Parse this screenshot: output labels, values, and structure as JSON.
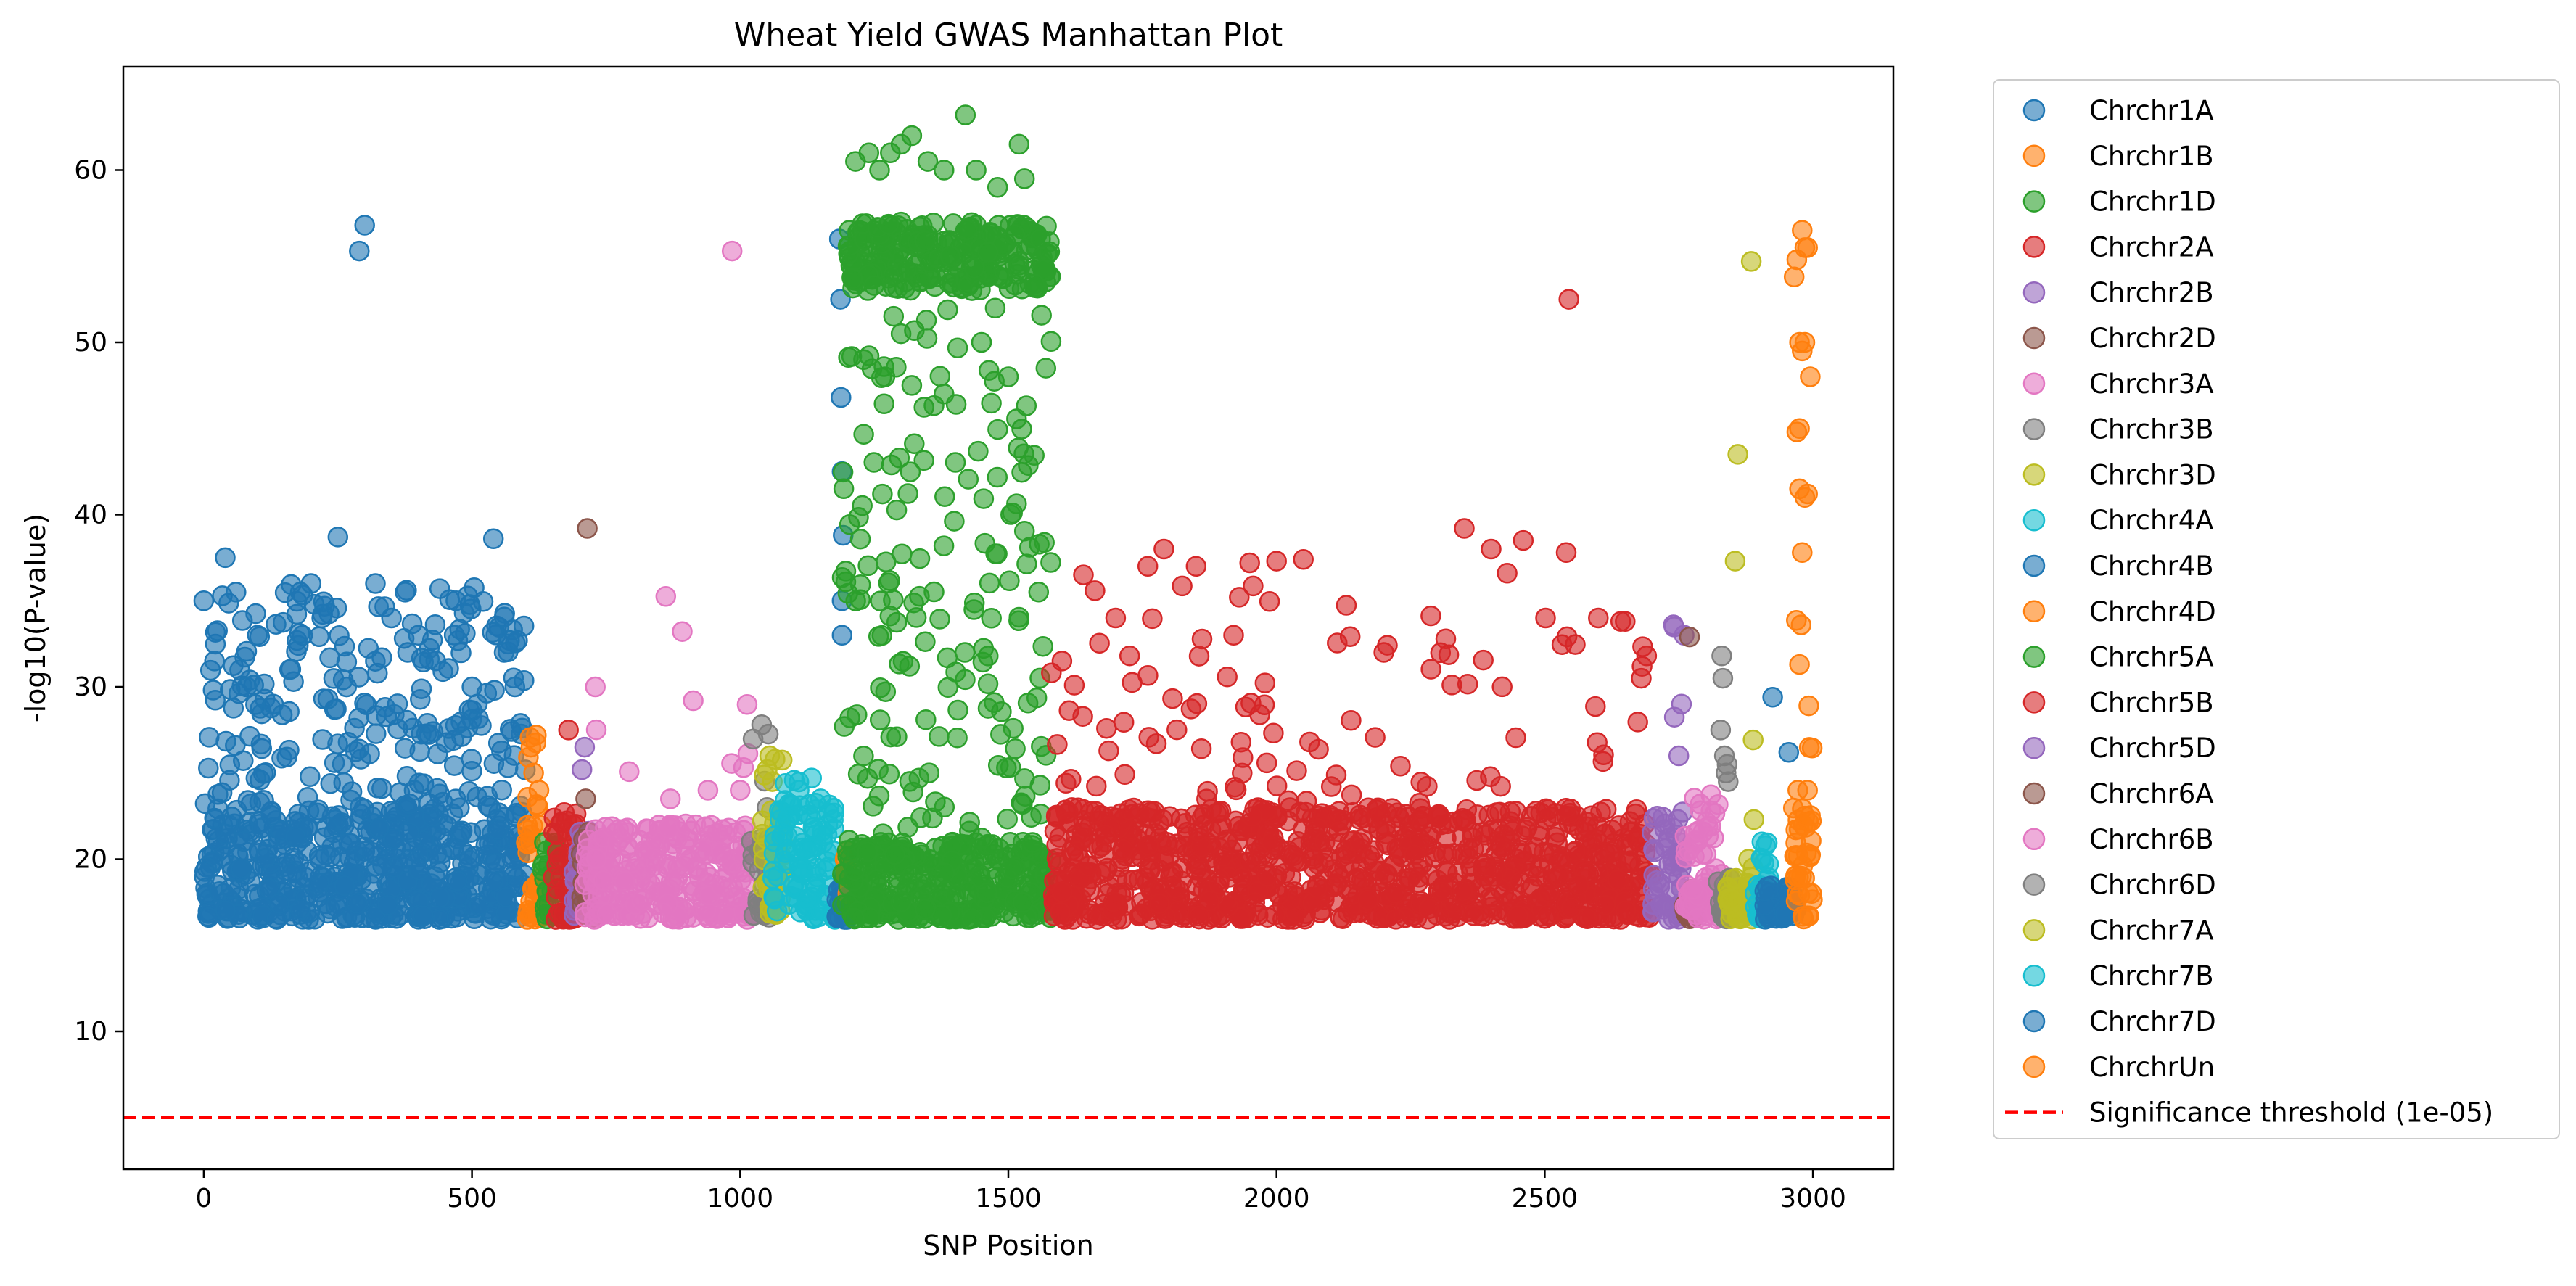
{
  "chart_data": {
    "type": "scatter",
    "title": "Wheat Yield GWAS Manhattan Plot",
    "xlabel": "SNP Position",
    "ylabel": "-log10(P-value)",
    "xlim": [
      -150,
      3150
    ],
    "ylim": [
      2,
      66
    ],
    "x_ticks": [
      0,
      500,
      1000,
      1500,
      2000,
      2500,
      3000
    ],
    "y_ticks": [
      10,
      20,
      30,
      40,
      50,
      60
    ],
    "grid": false,
    "legend_position": "outside-right",
    "threshold": {
      "label": "Significance threshold (1e-05)",
      "value": 5,
      "color": "#ff0000",
      "style": "dashed"
    },
    "series": [
      {
        "name": "Chrchr1A",
        "color": "#1f77b4",
        "x_range": [
          0,
          600
        ],
        "baseline": [
          16.5,
          23
        ],
        "top_hits": [
          [
            0,
            35
          ],
          [
            20,
            31.5
          ],
          [
            40,
            37.5
          ],
          [
            60,
            35.5
          ],
          [
            80,
            30
          ],
          [
            100,
            33
          ],
          [
            130,
            29
          ],
          [
            160,
            31
          ],
          [
            180,
            35.5
          ],
          [
            200,
            36
          ],
          [
            220,
            34
          ],
          [
            250,
            38.7
          ],
          [
            290,
            55.3
          ],
          [
            300,
            56.8
          ],
          [
            320,
            36
          ],
          [
            350,
            34
          ],
          [
            380,
            32
          ],
          [
            400,
            33
          ],
          [
            440,
            35.7
          ],
          [
            470,
            35
          ],
          [
            500,
            30
          ],
          [
            510,
            29
          ],
          [
            540,
            38.6
          ],
          [
            560,
            32
          ],
          [
            580,
            30
          ]
        ],
        "n_mid": 220
      },
      {
        "name": "Chrchr1B",
        "color": "#ff7f0e",
        "x_range": [
          600,
          630
        ],
        "baseline": [
          16.5,
          23
        ],
        "top_hits": [
          [
            610,
            26.5
          ],
          [
            620,
            27.2
          ],
          [
            615,
            25
          ],
          [
            625,
            24
          ]
        ],
        "n_mid": 6
      },
      {
        "name": "Chrchr1D",
        "color": "#2ca02c",
        "x_range": [
          630,
          660
        ],
        "baseline": [
          16.5,
          21
        ],
        "top_hits": [
          [
            640,
            20.5
          ]
        ],
        "n_mid": 0
      },
      {
        "name": "Chrchr2A",
        "color": "#d62728",
        "x_range": [
          650,
          710
        ],
        "baseline": [
          16.5,
          22.5
        ],
        "top_hits": [
          [
            680,
            27.5
          ]
        ],
        "n_mid": 2
      },
      {
        "name": "Chrchr2B",
        "color": "#9467bd",
        "x_range": [
          690,
          720
        ],
        "baseline": [
          16.5,
          22
        ],
        "top_hits": [
          [
            705,
            25.2
          ],
          [
            710,
            26.5
          ]
        ],
        "n_mid": 0
      },
      {
        "name": "Chrchr2D",
        "color": "#8c564b",
        "x_range": [
          700,
          730
        ],
        "baseline": [
          16.5,
          22
        ],
        "top_hits": [
          [
            715,
            39.2
          ],
          [
            712,
            23.5
          ]
        ],
        "n_mid": 0
      },
      {
        "name": "Chrchr3A",
        "color": "#e377c2",
        "x_range": [
          710,
          1020
        ],
        "baseline": [
          16.5,
          22
        ],
        "top_hits": [
          [
            730,
            30
          ],
          [
            985,
            55.3
          ],
          [
            870,
            23.5
          ],
          [
            940,
            24
          ],
          [
            1000,
            24
          ]
        ],
        "n_mid": 10
      },
      {
        "name": "Chrchr3B",
        "color": "#7f7f7f",
        "x_range": [
          1020,
          1060
        ],
        "baseline": [
          16.5,
          22
        ],
        "top_hits": [
          [
            1040,
            27.8
          ],
          [
            1050,
            23
          ]
        ],
        "n_mid": 3
      },
      {
        "name": "Chrchr3D",
        "color": "#bcbd22",
        "x_range": [
          1040,
          1080
        ],
        "baseline": [
          16.5,
          23
        ],
        "top_hits": [
          [
            1055,
            26
          ],
          [
            1065,
            25.8
          ],
          [
            1060,
            24.5
          ]
        ],
        "n_mid": 3
      },
      {
        "name": "Chrchr4A",
        "color": "#17becf",
        "x_range": [
          1060,
          1180
        ],
        "baseline": [
          16.5,
          23.5
        ],
        "top_hits": [
          [
            1110,
            24
          ],
          [
            1150,
            23.5
          ]
        ],
        "n_mid": 4
      },
      {
        "name": "Chrchr4B",
        "color": "#1f77b4",
        "x_range": [
          1180,
          1200
        ],
        "baseline": [
          16.5,
          20
        ],
        "top_hits": [
          [
            1185,
            56
          ],
          [
            1187,
            52.5
          ],
          [
            1188,
            46.8
          ],
          [
            1190,
            42.5
          ],
          [
            1192,
            38.8
          ],
          [
            1190,
            35
          ],
          [
            1190,
            33
          ]
        ],
        "n_mid": 0
      },
      {
        "name": "Chrchr4D",
        "color": "#ff7f0e",
        "x_range": [
          1195,
          1205
        ],
        "baseline": [
          18,
          21
        ],
        "top_hits": [],
        "n_mid": 0
      },
      {
        "name": "Chrchr5A",
        "color": "#2ca02c",
        "x_range": [
          1190,
          1580
        ],
        "baseline": [
          16.5,
          21
        ],
        "cluster": {
          "x_range": [
            1200,
            1580
          ],
          "y_range": [
            53,
            57
          ],
          "n": 260
        },
        "top_hits": [
          [
            1215,
            60.5
          ],
          [
            1240,
            61
          ],
          [
            1260,
            60
          ],
          [
            1280,
            61
          ],
          [
            1300,
            61.5
          ],
          [
            1320,
            62
          ],
          [
            1350,
            60.5
          ],
          [
            1380,
            60
          ],
          [
            1420,
            63.2
          ],
          [
            1440,
            60
          ],
          [
            1480,
            59
          ],
          [
            1520,
            61.5
          ],
          [
            1530,
            59.5
          ],
          [
            1560,
            56
          ],
          [
            1230,
            49
          ],
          [
            1270,
            48
          ],
          [
            1300,
            50.5
          ],
          [
            1320,
            47.5
          ],
          [
            1380,
            47
          ],
          [
            1450,
            50
          ],
          [
            1500,
            48
          ],
          [
            1570,
            48.5
          ]
        ],
        "n_mid": 170
      },
      {
        "name": "Chrchr5B",
        "color": "#d62728",
        "x_range": [
          1580,
          2700
        ],
        "baseline": [
          16.5,
          23
        ],
        "top_hits": [
          [
            1600,
            31.5
          ],
          [
            1640,
            36.5
          ],
          [
            1700,
            34
          ],
          [
            1760,
            37
          ],
          [
            1790,
            38
          ],
          [
            1850,
            37
          ],
          [
            1920,
            33
          ],
          [
            1950,
            37.2
          ],
          [
            2000,
            37.3
          ],
          [
            2050,
            37.4
          ],
          [
            2200,
            32
          ],
          [
            2350,
            39.2
          ],
          [
            2400,
            38
          ],
          [
            2430,
            36.6
          ],
          [
            2460,
            38.5
          ],
          [
            2540,
            37.8
          ],
          [
            2545,
            52.5
          ],
          [
            2600,
            34
          ],
          [
            2650,
            33.8
          ],
          [
            2680,
            30.5
          ],
          [
            2690,
            31.8
          ]
        ],
        "n_mid": 90
      },
      {
        "name": "Chrchr5D",
        "color": "#9467bd",
        "x_range": [
          2700,
          2760
        ],
        "baseline": [
          16.5,
          23
        ],
        "top_hits": [
          [
            2740,
            33.6
          ],
          [
            2760,
            33
          ],
          [
            2755,
            29
          ],
          [
            2750,
            26
          ]
        ],
        "n_mid": 2
      },
      {
        "name": "Chrchr6A",
        "color": "#8c564b",
        "x_range": [
          2760,
          2780
        ],
        "baseline": [
          16.5,
          18.5
        ],
        "top_hits": [
          [
            2770,
            32.9
          ]
        ],
        "n_mid": 0
      },
      {
        "name": "Chrchr6B",
        "color": "#e377c2",
        "x_range": [
          2760,
          2830
        ],
        "baseline": [
          16.5,
          23
        ],
        "top_hits": [
          [
            2790,
            23.2
          ],
          [
            2810,
            22.8
          ]
        ],
        "n_mid": 3
      },
      {
        "name": "Chrchr6D",
        "color": "#7f7f7f",
        "x_range": [
          2820,
          2850
        ],
        "baseline": [
          16.5,
          19
        ],
        "top_hits": [
          [
            2830,
            31.8
          ],
          [
            2832,
            30.5
          ],
          [
            2828,
            27.5
          ],
          [
            2835,
            26
          ],
          [
            2840,
            25.5
          ],
          [
            2842,
            24.5
          ],
          [
            2838,
            25
          ]
        ],
        "n_mid": 0
      },
      {
        "name": "Chrchr7A",
        "color": "#bcbd22",
        "x_range": [
          2840,
          2890
        ],
        "baseline": [
          16.5,
          19
        ],
        "top_hits": [
          [
            2860,
            43.5
          ],
          [
            2855,
            37.3
          ],
          [
            2885,
            54.7
          ],
          [
            2890,
            22.3
          ],
          [
            2880,
            20
          ]
        ],
        "n_mid": 2
      },
      {
        "name": "Chrchr7B",
        "color": "#17becf",
        "x_range": [
          2890,
          2920
        ],
        "baseline": [
          16.5,
          21
        ],
        "top_hits": [
          [
            2905,
            21
          ],
          [
            2905,
            20
          ]
        ],
        "n_mid": 0
      },
      {
        "name": "Chrchr7D",
        "color": "#1f77b4",
        "x_range": [
          2910,
          2970
        ],
        "baseline": [
          16.5,
          18.5
        ],
        "top_hits": [
          [
            2925,
            29.4
          ],
          [
            2955,
            26.2
          ]
        ],
        "n_mid": 0
      },
      {
        "name": "ChrchrUn",
        "color": "#ff7f0e",
        "x_range": [
          2960,
          3000
        ],
        "baseline": [
          16.5,
          24
        ],
        "top_hits": [
          [
            2980,
            56.5
          ],
          [
            2985,
            55.5
          ],
          [
            2990,
            55.5
          ],
          [
            2970,
            54.8
          ],
          [
            2965,
            53.8
          ],
          [
            2975,
            50
          ],
          [
            2985,
            50
          ],
          [
            2995,
            48
          ],
          [
            2980,
            49.5
          ],
          [
            2975,
            45
          ],
          [
            2970,
            44.8
          ],
          [
            2975,
            41.5
          ],
          [
            2990,
            41.2
          ],
          [
            2985,
            41
          ],
          [
            2980,
            37.8
          ],
          [
            2978,
            33.6
          ],
          [
            2975,
            31.3
          ],
          [
            2985,
            22.5
          ],
          [
            2990,
            24
          ]
        ],
        "n_mid": 4
      }
    ]
  }
}
